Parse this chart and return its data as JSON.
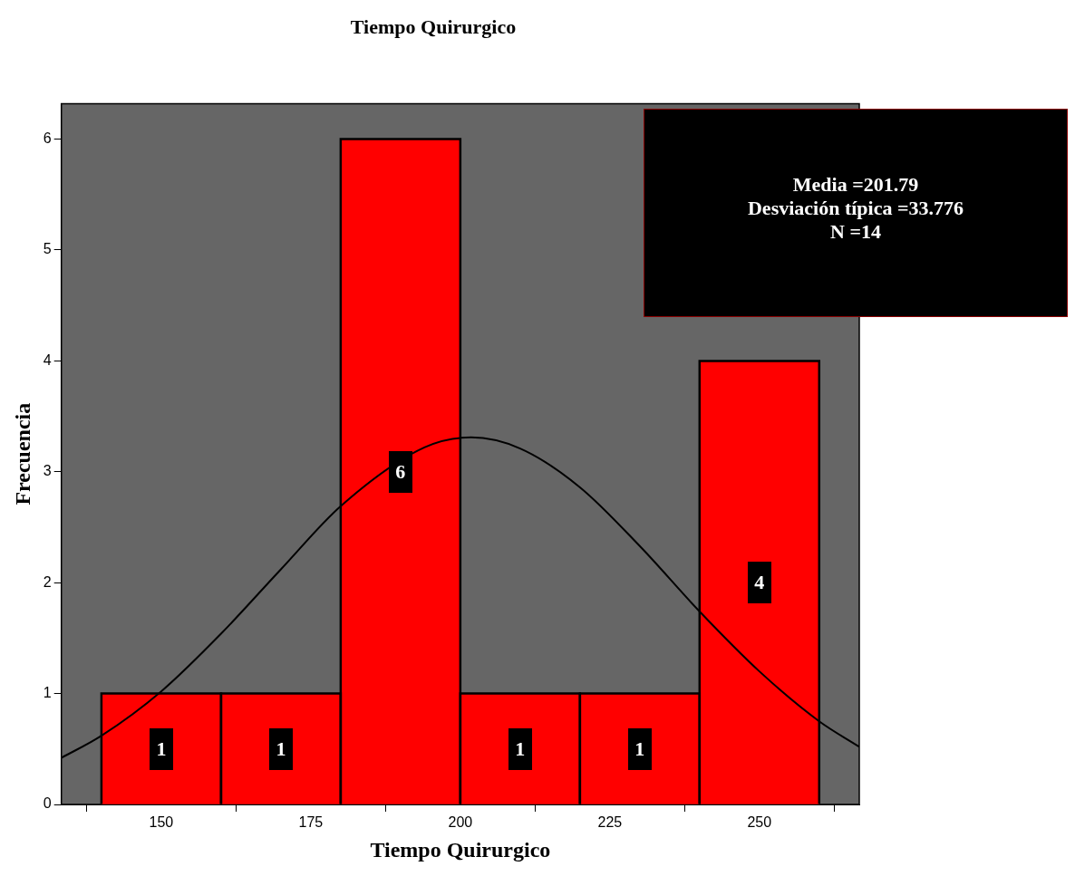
{
  "chart_data": {
    "type": "histogram",
    "title": "Tiempo Quirurgico",
    "xlabel": "Tiempo Quirurgico",
    "ylabel": "Frecuencia",
    "bins": [
      140,
      160,
      180,
      200,
      220,
      240,
      260
    ],
    "values": [
      1,
      1,
      6,
      1,
      1,
      4
    ],
    "color": "#ff0000",
    "series": [
      {
        "type": "line",
        "color": "#000000",
        "x": [
          133.3,
          140,
          150,
          160,
          170,
          180,
          194,
          201.79,
          210,
          220,
          230,
          240,
          250,
          260,
          266.7
        ],
        "values": [
          0.42,
          0.62,
          1.02,
          1.54,
          2.12,
          2.69,
          3.22,
          3.31,
          3.21,
          2.86,
          2.33,
          1.74,
          1.2,
          0.75,
          0.52
        ]
      }
    ],
    "xlim": [
      133.3,
      266.7
    ],
    "xticks": [
      150,
      175,
      200,
      225,
      250
    ],
    "ylim": [
      0,
      6.32
    ],
    "yticks": [
      0,
      1,
      2,
      3,
      4,
      5,
      6
    ],
    "value_labels": [
      "1",
      "1",
      "6",
      "1",
      "1",
      "4"
    ],
    "grid": false,
    "legend": false,
    "annotations": [
      "Media =201.79",
      "Desviación típica =33.776",
      "N =14"
    ]
  }
}
